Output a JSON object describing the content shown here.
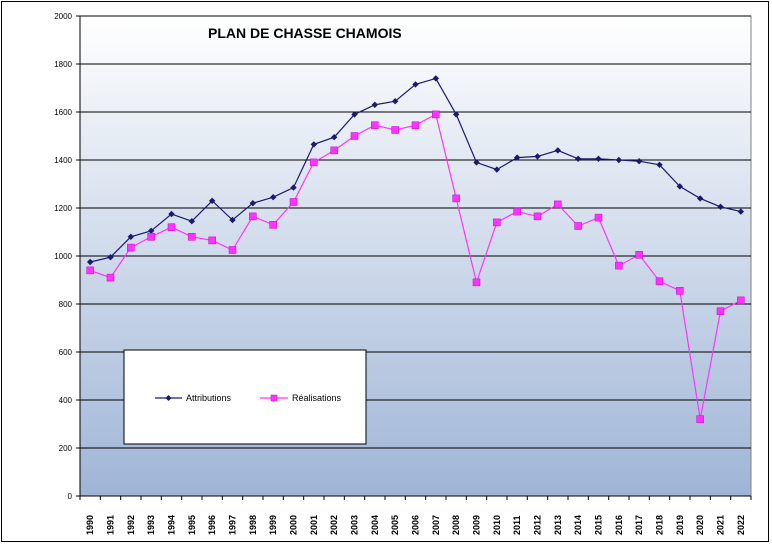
{
  "chart_data": {
    "type": "line",
    "title": "PLAN DE CHASSE CHAMOIS",
    "xlabel": "",
    "ylabel": "",
    "ylim": [
      0,
      2000
    ],
    "yticks": [
      0,
      200,
      400,
      600,
      800,
      1000,
      1200,
      1400,
      1600,
      1800,
      2000
    ],
    "grid": "horizontal",
    "legend_position": "lower-left inside plot",
    "categories": [
      "1990",
      "1991",
      "1992",
      "1993",
      "1994",
      "1995",
      "1996",
      "1997",
      "1998",
      "1999",
      "2000",
      "2001",
      "2002",
      "2003",
      "2004",
      "2005",
      "2006",
      "2007",
      "2008",
      "2009",
      "2010",
      "2011",
      "2012",
      "2013",
      "2014",
      "2015",
      "2016",
      "2017",
      "2018",
      "2019",
      "2020",
      "2021",
      "2022"
    ],
    "series": [
      {
        "name": "Attributions",
        "color": "#1a1a6e",
        "marker": "diamond",
        "values": [
          975,
          995,
          1080,
          1105,
          1175,
          1145,
          1230,
          1150,
          1220,
          1245,
          1285,
          1465,
          1495,
          1590,
          1630,
          1645,
          1715,
          1740,
          1590,
          1390,
          1360,
          1410,
          1415,
          1440,
          1405,
          1405,
          1400,
          1395,
          1380,
          1290,
          1240,
          1205,
          1185
        ]
      },
      {
        "name": "Réalisations",
        "color": "#ff33ff",
        "marker": "square",
        "values": [
          940,
          910,
          1035,
          1080,
          1120,
          1080,
          1065,
          1025,
          1165,
          1130,
          1225,
          1390,
          1440,
          1500,
          1545,
          1525,
          1545,
          1590,
          1240,
          890,
          1140,
          1185,
          1165,
          1215,
          1125,
          1160,
          960,
          1005,
          895,
          855,
          320,
          770,
          815
        ]
      }
    ]
  }
}
